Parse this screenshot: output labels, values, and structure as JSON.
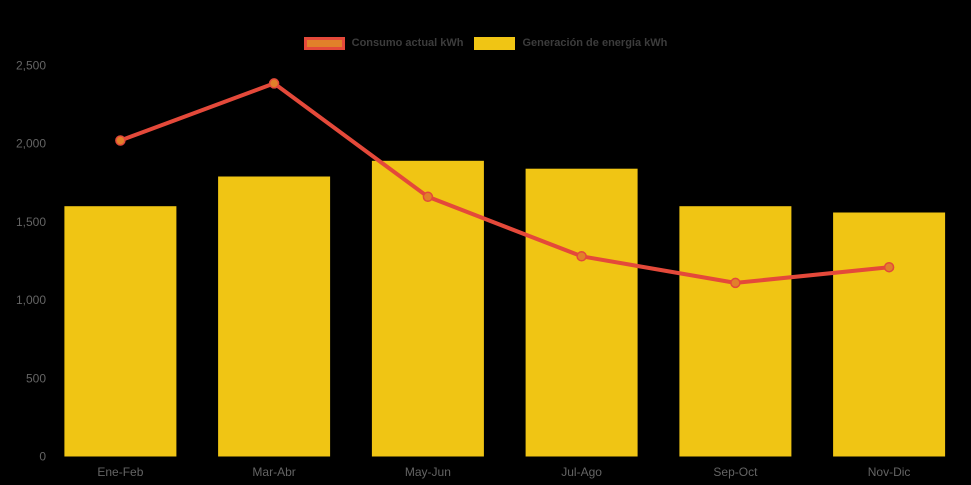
{
  "chart_data": {
    "type": "combo",
    "title": "",
    "categories": [
      "Ene-Feb",
      "Mar-Abr",
      "May-Jun",
      "Jul-Ago",
      "Sep-Oct",
      "Nov-Dic"
    ],
    "series": [
      {
        "name": "Consumo actual kWh",
        "type": "line",
        "color": "#e4493a",
        "marker_fill": "#e1802a",
        "values": [
          2020,
          2385,
          1660,
          1280,
          1110,
          1210
        ]
      },
      {
        "name": "Generación de energía kWh",
        "type": "bar",
        "color": "#f0c514",
        "values": [
          1600,
          1790,
          1890,
          1840,
          1600,
          1560
        ]
      }
    ],
    "xlabel": "",
    "ylabel": "",
    "ylim": [
      0,
      2500
    ],
    "yticks": [
      0,
      500,
      1000,
      1500,
      2000,
      2500
    ],
    "ytick_labels": [
      "0",
      "500",
      "1,000",
      "1,500",
      "2,000",
      "2,500"
    ],
    "grid": false,
    "legend_position": "top",
    "colors": {
      "background": "#000000",
      "axis_label": "#646464",
      "legend_text": "#3c3c3c"
    }
  }
}
